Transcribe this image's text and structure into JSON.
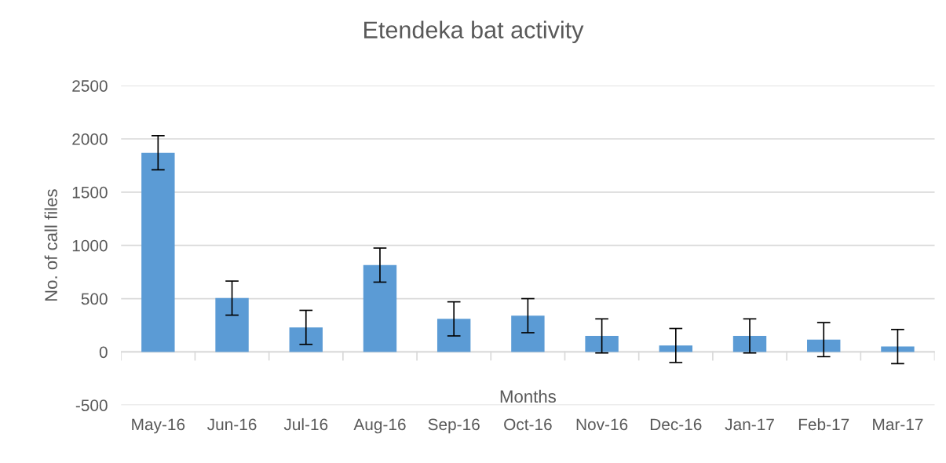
{
  "chart_data": {
    "type": "bar",
    "title": "Etendeka bat activity",
    "xlabel": "Months",
    "ylabel": "No. of call files",
    "categories": [
      "May-16",
      "Jun-16",
      "Jul-16",
      "Aug-16",
      "Sep-16",
      "Oct-16",
      "Nov-16",
      "Dec-16",
      "Jan-17",
      "Feb-17",
      "Mar-17"
    ],
    "values": [
      1870,
      505,
      230,
      815,
      310,
      340,
      150,
      60,
      150,
      115,
      50
    ],
    "errors": [
      160,
      160,
      160,
      160,
      160,
      160,
      160,
      160,
      160,
      160,
      160
    ],
    "color": "#5b9bd5",
    "ylim": [
      -500,
      2500
    ],
    "yticks": [
      -500,
      0,
      500,
      1000,
      1500,
      2000,
      2500
    ],
    "grid": "y",
    "legend": false
  }
}
